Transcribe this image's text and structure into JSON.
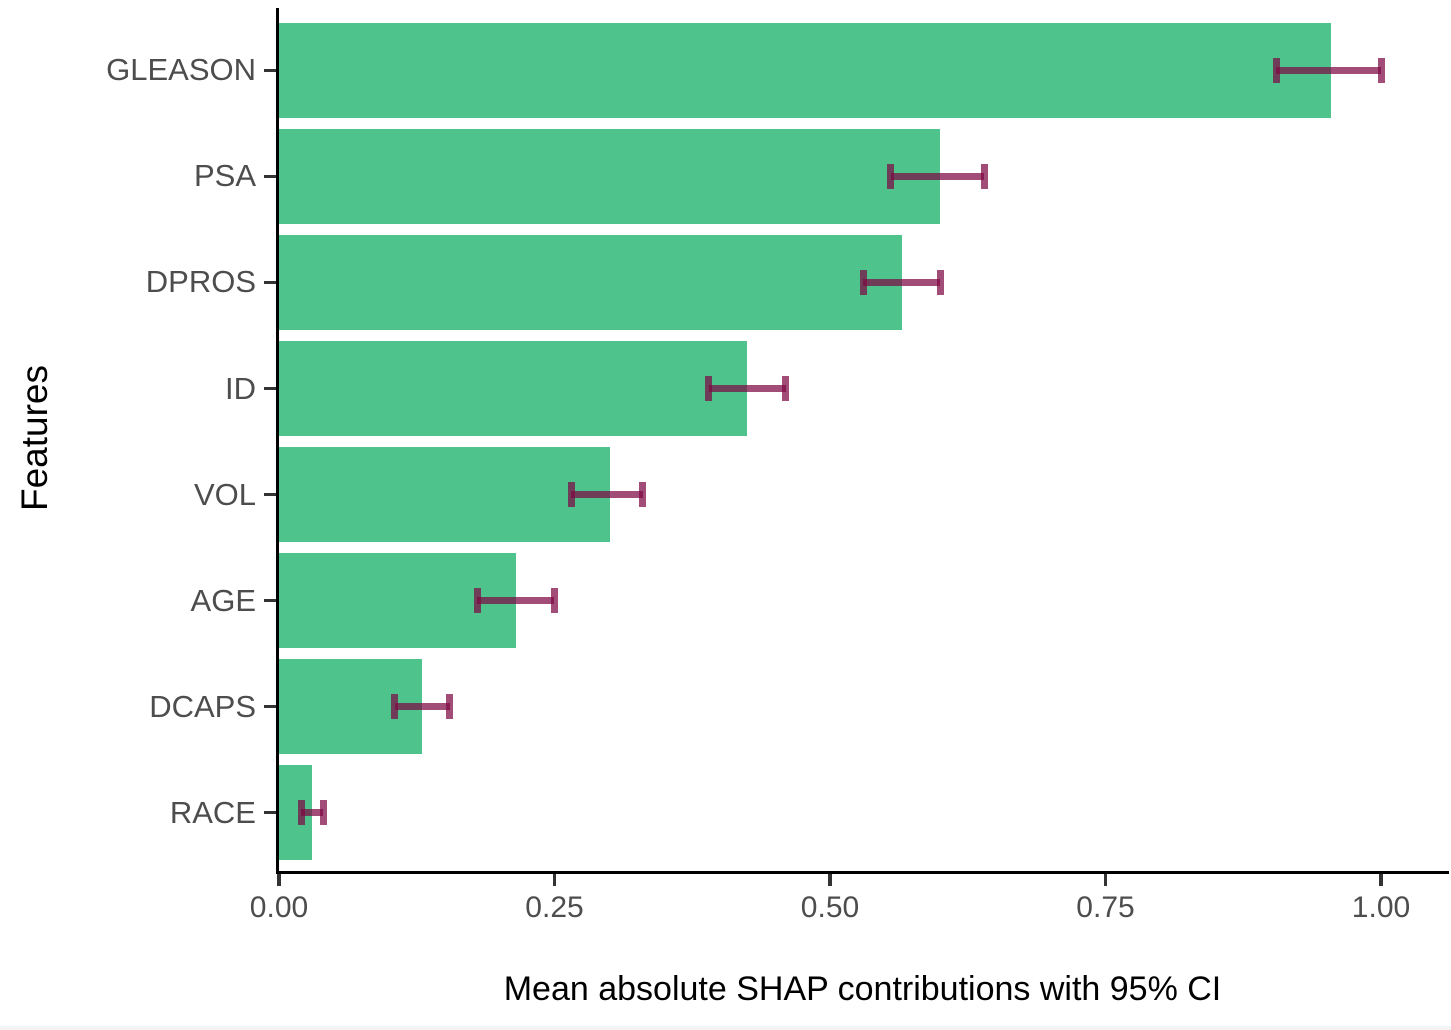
{
  "figure": {
    "x_tick_labels": [
      "0.00",
      "0.25",
      "0.50",
      "0.75",
      "1.00"
    ]
  },
  "colors": {
    "bar_green": "#4EC48C",
    "errorbar_purple": "rgba(125, 8, 68, 0.72)",
    "axis_black": "#000000",
    "tick_label_gray": "#4D4D4D"
  },
  "chart_data": {
    "type": "bar",
    "orientation": "horizontal",
    "title": "",
    "xlabel": "Mean absolute SHAP contributions with 95% CI",
    "ylabel": "Features",
    "xlim": [
      0,
      1.0
    ],
    "x_ticks": [
      0,
      0.25,
      0.5,
      0.75,
      1.0
    ],
    "grid": false,
    "legend": false,
    "categories": [
      "GLEASON",
      "PSA",
      "DPROS",
      "ID",
      "VOL",
      "AGE",
      "DCAPS",
      "RACE"
    ],
    "values": [
      0.955,
      0.6,
      0.565,
      0.425,
      0.3,
      0.215,
      0.13,
      0.03
    ],
    "ci_low": [
      0.905,
      0.555,
      0.53,
      0.39,
      0.265,
      0.18,
      0.105,
      0.02
    ],
    "ci_high": [
      1.0,
      0.64,
      0.6,
      0.46,
      0.33,
      0.25,
      0.155,
      0.04
    ]
  }
}
